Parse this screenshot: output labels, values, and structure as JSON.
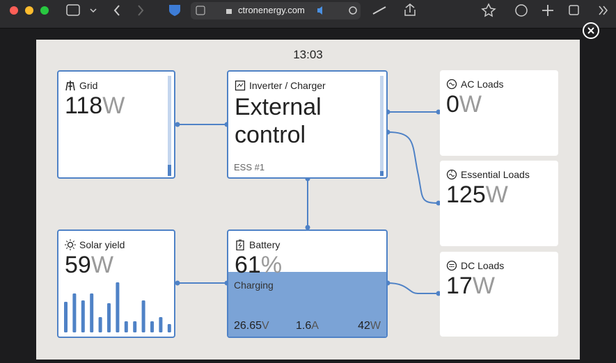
{
  "browser": {
    "url": "ctronenergy.com"
  },
  "panel": {
    "time": "13:03",
    "grid": {
      "title": "Grid",
      "value": "118",
      "unit": "W"
    },
    "inverter": {
      "title": "Inverter / Charger",
      "state_line1": "External",
      "state_line2": "control",
      "mode": "ESS #1"
    },
    "ac_loads": {
      "title": "AC Loads",
      "value": "0",
      "unit": "W"
    },
    "essential_loads": {
      "title": "Essential Loads",
      "value": "125",
      "unit": "W"
    },
    "dc_loads": {
      "title": "DC Loads",
      "value": "17",
      "unit": "W"
    },
    "solar": {
      "title": "Solar yield",
      "value": "59",
      "unit": "W",
      "history": [
        44,
        56,
        46,
        56,
        22,
        42,
        72,
        16,
        16,
        46,
        16,
        22,
        12
      ]
    },
    "battery": {
      "title": "Battery",
      "percent": 61,
      "percent_unit": "%",
      "state": "Charging",
      "voltage": "26.65",
      "voltage_unit": "V",
      "current": "1.6",
      "current_unit": "A",
      "power": "42",
      "power_unit": "W"
    }
  }
}
